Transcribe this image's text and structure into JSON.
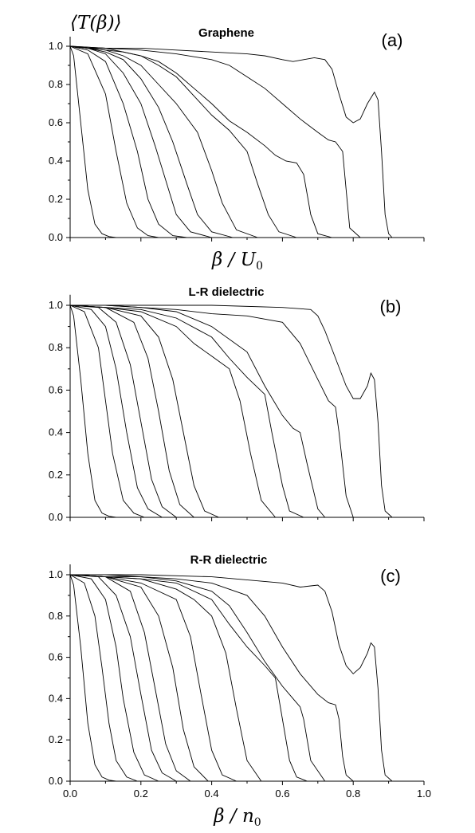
{
  "figure": {
    "ylabel": "⟨T(β)⟩"
  },
  "chart_data": [
    {
      "type": "line",
      "panel": "(a)",
      "title": "Graphene",
      "xlabel_main": "β / U",
      "xlabel_sub": "0",
      "xlim": [
        0.0,
        1.0
      ],
      "ylim": [
        0.0,
        1.05
      ],
      "y_ticks": [
        "0.0",
        "0.2",
        "0.4",
        "0.6",
        "0.8",
        "1.0"
      ],
      "x_ticks_labeled": false,
      "series": [
        {
          "x": [
            0,
            0.01,
            0.03,
            0.05,
            0.07,
            0.09,
            0.11,
            0.13
          ],
          "values": [
            1.0,
            0.95,
            0.6,
            0.25,
            0.07,
            0.02,
            0.005,
            0.0
          ]
        },
        {
          "x": [
            0,
            0.05,
            0.1,
            0.13,
            0.16,
            0.19,
            0.22,
            0.25
          ],
          "values": [
            1.0,
            0.96,
            0.75,
            0.45,
            0.18,
            0.05,
            0.01,
            0.0
          ]
        },
        {
          "x": [
            0,
            0.05,
            0.1,
            0.15,
            0.19,
            0.22,
            0.25,
            0.29,
            0.33
          ],
          "values": [
            1.0,
            0.98,
            0.92,
            0.7,
            0.45,
            0.2,
            0.07,
            0.01,
            0.0
          ]
        },
        {
          "x": [
            0,
            0.05,
            0.1,
            0.15,
            0.2,
            0.24,
            0.27,
            0.3,
            0.34,
            0.4
          ],
          "values": [
            1.0,
            0.99,
            0.96,
            0.86,
            0.7,
            0.48,
            0.3,
            0.12,
            0.03,
            0.0
          ]
        },
        {
          "x": [
            0,
            0.05,
            0.1,
            0.15,
            0.2,
            0.25,
            0.29,
            0.33,
            0.36,
            0.4,
            0.46
          ],
          "values": [
            1.0,
            0.99,
            0.97,
            0.93,
            0.83,
            0.68,
            0.5,
            0.28,
            0.12,
            0.03,
            0.0
          ]
        },
        {
          "x": [
            0,
            0.05,
            0.1,
            0.15,
            0.2,
            0.25,
            0.3,
            0.36,
            0.4,
            0.43,
            0.47,
            0.53
          ],
          "values": [
            1.0,
            0.99,
            0.98,
            0.95,
            0.9,
            0.8,
            0.7,
            0.55,
            0.35,
            0.18,
            0.04,
            0.0
          ]
        },
        {
          "x": [
            0,
            0.05,
            0.1,
            0.15,
            0.2,
            0.25,
            0.3,
            0.35,
            0.4,
            0.45,
            0.5,
            0.53,
            0.56,
            0.59,
            0.64
          ],
          "values": [
            1.0,
            0.99,
            0.98,
            0.97,
            0.95,
            0.9,
            0.84,
            0.74,
            0.64,
            0.56,
            0.45,
            0.28,
            0.12,
            0.03,
            0.0
          ]
        },
        {
          "x": [
            0,
            0.05,
            0.1,
            0.15,
            0.2,
            0.25,
            0.3,
            0.35,
            0.4,
            0.45,
            0.5,
            0.55,
            0.58,
            0.61,
            0.64,
            0.66,
            0.68,
            0.7,
            0.74
          ],
          "values": [
            1.0,
            0.99,
            0.99,
            0.97,
            0.95,
            0.92,
            0.86,
            0.78,
            0.7,
            0.61,
            0.55,
            0.48,
            0.43,
            0.4,
            0.39,
            0.33,
            0.12,
            0.02,
            0.0
          ]
        },
        {
          "x": [
            0,
            0.1,
            0.2,
            0.3,
            0.4,
            0.45,
            0.5,
            0.55,
            0.6,
            0.65,
            0.7,
            0.73,
            0.75,
            0.77,
            0.78,
            0.79,
            0.82
          ],
          "values": [
            1.0,
            0.99,
            0.98,
            0.96,
            0.93,
            0.9,
            0.84,
            0.78,
            0.7,
            0.62,
            0.55,
            0.51,
            0.5,
            0.45,
            0.25,
            0.05,
            0.0
          ]
        },
        {
          "x": [
            0,
            0.1,
            0.2,
            0.3,
            0.4,
            0.5,
            0.55,
            0.6,
            0.63,
            0.66,
            0.69,
            0.72,
            0.74,
            0.76,
            0.78,
            0.8,
            0.82,
            0.84,
            0.86,
            0.87,
            0.88,
            0.89,
            0.9,
            0.91
          ],
          "values": [
            1.0,
            0.99,
            0.99,
            0.98,
            0.97,
            0.96,
            0.95,
            0.93,
            0.92,
            0.93,
            0.94,
            0.93,
            0.88,
            0.75,
            0.63,
            0.6,
            0.62,
            0.7,
            0.76,
            0.72,
            0.45,
            0.12,
            0.02,
            0.0
          ]
        }
      ]
    },
    {
      "type": "line",
      "panel": "(b)",
      "title": "L-R dielectric",
      "xlim": [
        0.0,
        1.0
      ],
      "ylim": [
        0.0,
        1.05
      ],
      "y_ticks": [
        "0.0",
        "0.2",
        "0.4",
        "0.6",
        "0.8",
        "1.0"
      ],
      "x_ticks_labeled": false,
      "series": [
        {
          "x": [
            0,
            0.01,
            0.03,
            0.05,
            0.07,
            0.09,
            0.11,
            0.13
          ],
          "values": [
            1.0,
            0.95,
            0.65,
            0.3,
            0.08,
            0.02,
            0.005,
            0.0
          ]
        },
        {
          "x": [
            0,
            0.04,
            0.08,
            0.1,
            0.12,
            0.15,
            0.18,
            0.21
          ],
          "values": [
            1.0,
            0.97,
            0.8,
            0.55,
            0.3,
            0.08,
            0.02,
            0.0
          ]
        },
        {
          "x": [
            0,
            0.06,
            0.1,
            0.13,
            0.16,
            0.19,
            0.22,
            0.26
          ],
          "values": [
            1.0,
            0.98,
            0.9,
            0.7,
            0.4,
            0.14,
            0.04,
            0.0
          ]
        },
        {
          "x": [
            0,
            0.08,
            0.13,
            0.17,
            0.2,
            0.23,
            0.26,
            0.3
          ],
          "values": [
            1.0,
            0.99,
            0.92,
            0.72,
            0.45,
            0.18,
            0.05,
            0.0
          ]
        },
        {
          "x": [
            0,
            0.1,
            0.18,
            0.22,
            0.25,
            0.28,
            0.31,
            0.35
          ],
          "values": [
            1.0,
            0.99,
            0.92,
            0.75,
            0.5,
            0.22,
            0.06,
            0.0
          ]
        },
        {
          "x": [
            0,
            0.1,
            0.2,
            0.25,
            0.29,
            0.32,
            0.35,
            0.38,
            0.42
          ],
          "values": [
            1.0,
            0.99,
            0.95,
            0.85,
            0.65,
            0.4,
            0.15,
            0.03,
            0.0
          ]
        },
        {
          "x": [
            0,
            0.1,
            0.2,
            0.3,
            0.35,
            0.4,
            0.45,
            0.48,
            0.51,
            0.54,
            0.58
          ],
          "values": [
            1.0,
            0.99,
            0.97,
            0.9,
            0.82,
            0.76,
            0.7,
            0.55,
            0.3,
            0.08,
            0.0
          ]
        },
        {
          "x": [
            0,
            0.1,
            0.2,
            0.3,
            0.4,
            0.45,
            0.5,
            0.55,
            0.57,
            0.6,
            0.62,
            0.66
          ],
          "values": [
            1.0,
            0.99,
            0.98,
            0.94,
            0.85,
            0.75,
            0.66,
            0.58,
            0.4,
            0.15,
            0.03,
            0.0
          ]
        },
        {
          "x": [
            0,
            0.1,
            0.2,
            0.3,
            0.4,
            0.5,
            0.55,
            0.6,
            0.63,
            0.65,
            0.67,
            0.7,
            0.72
          ],
          "values": [
            1.0,
            1.0,
            0.99,
            0.97,
            0.9,
            0.78,
            0.62,
            0.48,
            0.42,
            0.4,
            0.25,
            0.04,
            0.0
          ]
        },
        {
          "x": [
            0,
            0.1,
            0.2,
            0.3,
            0.4,
            0.5,
            0.6,
            0.65,
            0.7,
            0.73,
            0.75,
            0.76,
            0.78,
            0.8
          ],
          "values": [
            1.0,
            1.0,
            0.99,
            0.98,
            0.96,
            0.95,
            0.92,
            0.82,
            0.65,
            0.55,
            0.52,
            0.4,
            0.1,
            0.0
          ]
        },
        {
          "x": [
            0,
            0.2,
            0.4,
            0.6,
            0.68,
            0.7,
            0.72,
            0.75,
            0.78,
            0.8,
            0.82,
            0.84,
            0.85,
            0.86,
            0.87,
            0.88,
            0.89,
            0.91
          ],
          "values": [
            1.0,
            1.0,
            1.0,
            0.99,
            0.98,
            0.95,
            0.88,
            0.75,
            0.62,
            0.56,
            0.56,
            0.62,
            0.68,
            0.65,
            0.45,
            0.15,
            0.03,
            0.0
          ]
        }
      ]
    },
    {
      "type": "line",
      "panel": "(c)",
      "title": "R-R dielectric",
      "xlabel_main": "β / n",
      "xlabel_sub": "0",
      "xlim": [
        0.0,
        1.0
      ],
      "ylim": [
        0.0,
        1.05
      ],
      "x_ticks": [
        "0.0",
        "0.2",
        "0.4",
        "0.6",
        "0.8",
        "1.0"
      ],
      "y_ticks": [
        "0.0",
        "0.2",
        "0.4",
        "0.6",
        "0.8",
        "1.0"
      ],
      "series": [
        {
          "x": [
            0,
            0.01,
            0.03,
            0.05,
            0.07,
            0.09,
            0.11,
            0.13
          ],
          "values": [
            1.0,
            0.95,
            0.65,
            0.28,
            0.08,
            0.02,
            0.005,
            0.0
          ]
        },
        {
          "x": [
            0,
            0.04,
            0.07,
            0.09,
            0.11,
            0.13,
            0.16,
            0.19
          ],
          "values": [
            1.0,
            0.96,
            0.8,
            0.55,
            0.28,
            0.1,
            0.02,
            0.0
          ]
        },
        {
          "x": [
            0,
            0.06,
            0.1,
            0.13,
            0.15,
            0.18,
            0.21,
            0.25
          ],
          "values": [
            1.0,
            0.98,
            0.88,
            0.65,
            0.4,
            0.14,
            0.03,
            0.0
          ]
        },
        {
          "x": [
            0,
            0.08,
            0.13,
            0.17,
            0.2,
            0.23,
            0.26,
            0.3
          ],
          "values": [
            1.0,
            0.99,
            0.9,
            0.7,
            0.42,
            0.15,
            0.04,
            0.0
          ]
        },
        {
          "x": [
            0,
            0.1,
            0.17,
            0.21,
            0.24,
            0.27,
            0.3,
            0.34
          ],
          "values": [
            1.0,
            0.99,
            0.92,
            0.72,
            0.45,
            0.18,
            0.05,
            0.0
          ]
        },
        {
          "x": [
            0,
            0.1,
            0.2,
            0.25,
            0.29,
            0.32,
            0.35,
            0.39
          ],
          "values": [
            1.0,
            0.99,
            0.94,
            0.8,
            0.55,
            0.25,
            0.07,
            0.0
          ]
        },
        {
          "x": [
            0,
            0.1,
            0.2,
            0.3,
            0.34,
            0.37,
            0.4,
            0.43,
            0.47
          ],
          "values": [
            1.0,
            0.99,
            0.96,
            0.88,
            0.7,
            0.42,
            0.15,
            0.03,
            0.0
          ]
        },
        {
          "x": [
            0,
            0.1,
            0.2,
            0.3,
            0.35,
            0.4,
            0.44,
            0.47,
            0.5,
            0.54
          ],
          "values": [
            1.0,
            0.99,
            0.98,
            0.93,
            0.88,
            0.8,
            0.62,
            0.35,
            0.1,
            0.0
          ]
        },
        {
          "x": [
            0,
            0.1,
            0.2,
            0.3,
            0.4,
            0.45,
            0.5,
            0.55,
            0.58,
            0.6,
            0.62,
            0.64,
            0.67
          ],
          "values": [
            1.0,
            0.99,
            0.98,
            0.96,
            0.88,
            0.76,
            0.65,
            0.56,
            0.5,
            0.3,
            0.1,
            0.02,
            0.0
          ]
        },
        {
          "x": [
            0,
            0.1,
            0.2,
            0.3,
            0.4,
            0.45,
            0.5,
            0.55,
            0.6,
            0.63,
            0.65,
            0.66,
            0.68,
            0.72
          ],
          "values": [
            1.0,
            0.99,
            0.99,
            0.97,
            0.92,
            0.85,
            0.72,
            0.58,
            0.46,
            0.4,
            0.36,
            0.3,
            0.1,
            0.0
          ]
        },
        {
          "x": [
            0,
            0.1,
            0.2,
            0.3,
            0.4,
            0.5,
            0.55,
            0.6,
            0.65,
            0.7,
            0.73,
            0.75,
            0.76,
            0.77,
            0.78,
            0.8
          ],
          "values": [
            1.0,
            1.0,
            0.99,
            0.98,
            0.96,
            0.9,
            0.8,
            0.65,
            0.52,
            0.42,
            0.38,
            0.37,
            0.3,
            0.12,
            0.03,
            0.0
          ]
        },
        {
          "x": [
            0,
            0.2,
            0.4,
            0.6,
            0.65,
            0.7,
            0.72,
            0.74,
            0.76,
            0.78,
            0.8,
            0.82,
            0.84,
            0.85,
            0.86,
            0.87,
            0.88,
            0.89,
            0.91
          ],
          "values": [
            1.0,
            1.0,
            0.99,
            0.96,
            0.94,
            0.95,
            0.92,
            0.82,
            0.66,
            0.56,
            0.52,
            0.55,
            0.62,
            0.67,
            0.65,
            0.45,
            0.15,
            0.03,
            0.0
          ]
        }
      ]
    }
  ]
}
